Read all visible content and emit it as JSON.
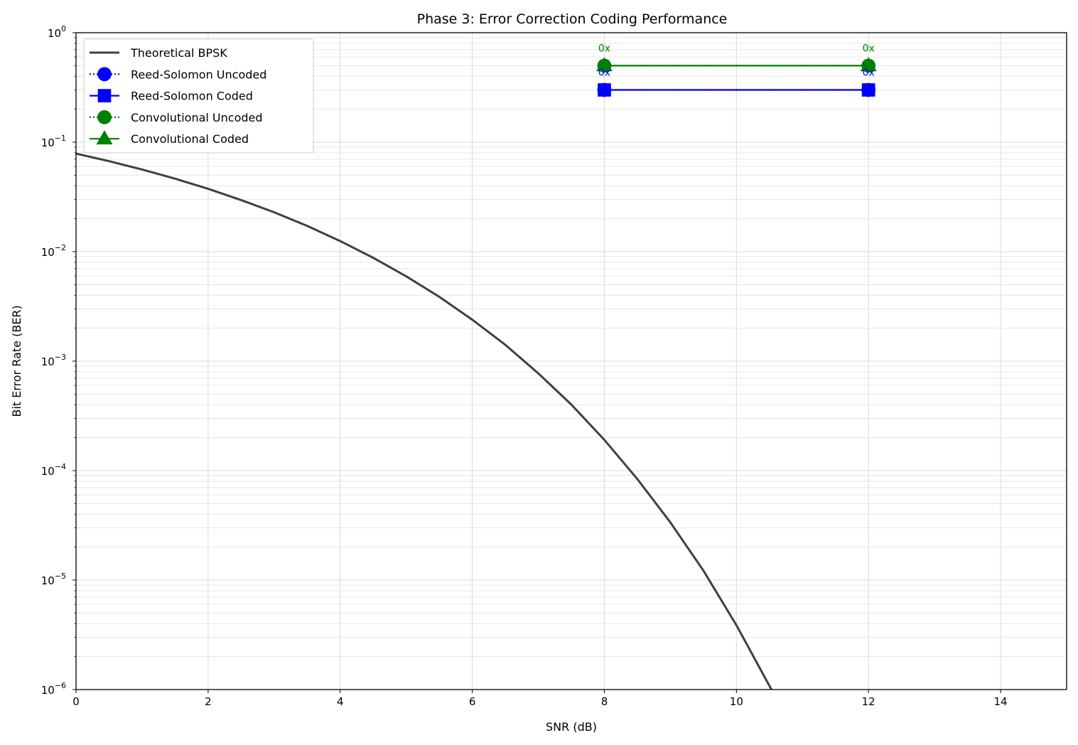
{
  "chart_data": {
    "type": "line",
    "title": "Phase 3: Error Correction Coding Performance",
    "xlabel": "SNR (dB)",
    "ylabel": "Bit Error Rate (BER)",
    "xlim": [
      0,
      15
    ],
    "ylim": [
      1e-06,
      1
    ],
    "yscale": "log",
    "grid": true,
    "legend_position": "top-left",
    "x_ticks": [
      0,
      2,
      4,
      6,
      8,
      10,
      12,
      14
    ],
    "y_ticks": [
      {
        "value": 1,
        "base": "10",
        "exp": "0"
      },
      {
        "value": 0.1,
        "base": "10",
        "exp": "−1"
      },
      {
        "value": 0.01,
        "base": "10",
        "exp": "−2"
      },
      {
        "value": 0.001,
        "base": "10",
        "exp": "−3"
      },
      {
        "value": 0.0001,
        "base": "10",
        "exp": "−4"
      },
      {
        "value": 1e-05,
        "base": "10",
        "exp": "−5"
      },
      {
        "value": 1e-06,
        "base": "10",
        "exp": "−6"
      }
    ],
    "series": [
      {
        "name": "Theoretical BPSK",
        "color": "#404040",
        "linestyle": "solid",
        "marker": "none",
        "x": [
          0,
          0.5,
          1,
          1.5,
          2,
          2.5,
          3,
          3.5,
          4,
          4.5,
          5,
          5.5,
          6,
          6.5,
          7,
          7.5,
          8,
          8.5,
          9,
          9.5,
          10,
          10.5,
          10.55
        ],
        "y": [
          0.0786,
          0.0671,
          0.0563,
          0.0464,
          0.0375,
          0.0296,
          0.0229,
          0.0172,
          0.0125,
          0.00879,
          0.00595,
          0.00387,
          0.00239,
          0.00141,
          0.000773,
          0.000401,
          0.000191,
          8.37e-05,
          3.36e-05,
          1.22e-05,
          3.87e-06,
          1.08e-06,
          9.5e-07
        ]
      },
      {
        "name": "Reed-Solomon Uncoded",
        "color": "#0000ff",
        "linestyle": "dotted",
        "marker": "circle",
        "x": [
          8,
          12
        ],
        "y": [
          0.3,
          0.3
        ]
      },
      {
        "name": "Reed-Solomon Coded",
        "color": "#0000ff",
        "linestyle": "solid",
        "marker": "square",
        "x": [
          8,
          12
        ],
        "y": [
          0.3,
          0.3
        ]
      },
      {
        "name": "Convolutional Uncoded",
        "color": "#008000",
        "linestyle": "dotted",
        "marker": "circle",
        "x": [
          8,
          12
        ],
        "y": [
          0.5,
          0.5
        ]
      },
      {
        "name": "Convolutional Coded",
        "color": "#008000",
        "linestyle": "solid",
        "marker": "triangle",
        "x": [
          8,
          12
        ],
        "y": [
          0.5,
          0.5
        ]
      }
    ],
    "annotations": [
      {
        "text": "0x",
        "x": 8,
        "y": 0.5,
        "color": "#008000",
        "position": "above"
      },
      {
        "text": "0x",
        "x": 12,
        "y": 0.5,
        "color": "#008000",
        "position": "above"
      },
      {
        "text": "0x",
        "x": 8,
        "y": 0.3,
        "color": "#0000ff",
        "position": "above"
      },
      {
        "text": "0x",
        "x": 12,
        "y": 0.3,
        "color": "#0000ff",
        "position": "above"
      }
    ]
  }
}
